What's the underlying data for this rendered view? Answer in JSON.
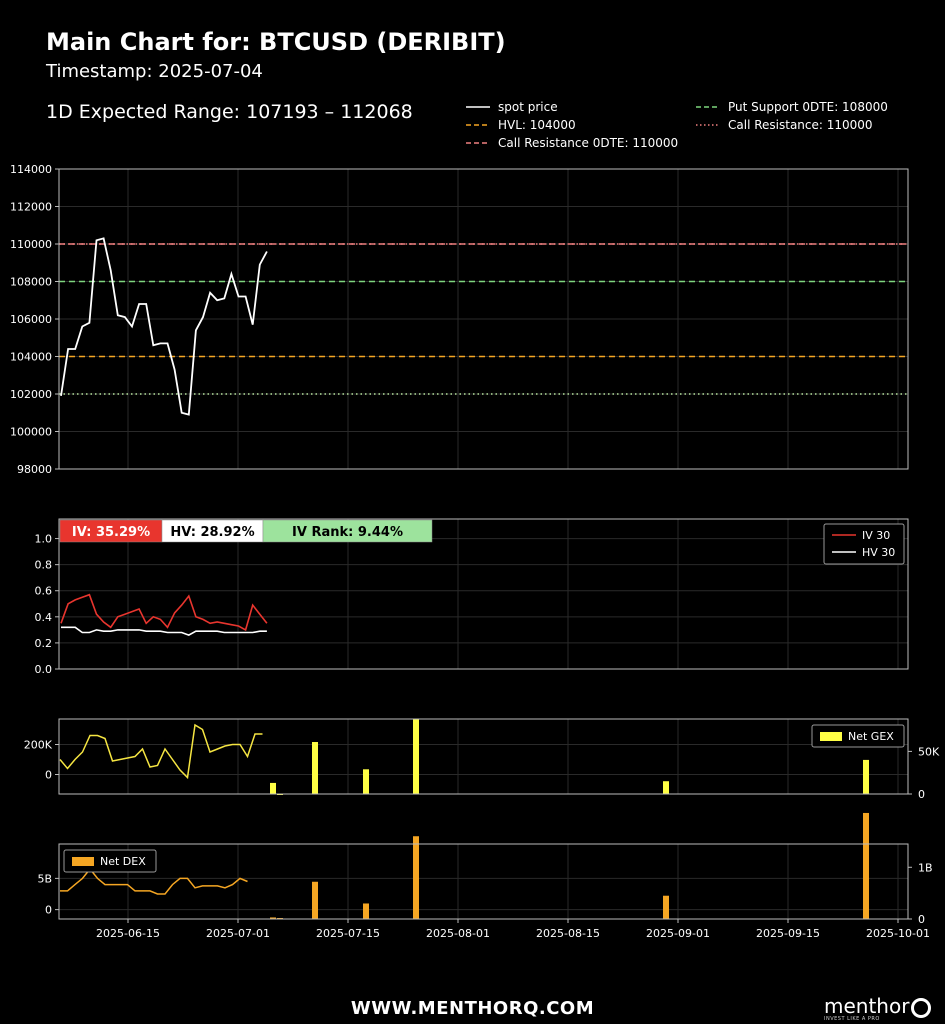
{
  "header": {
    "title": "Main Chart for: BTCUSD (DERIBIT)",
    "timestamp": "Timestamp: 2025-07-04",
    "expected_range": "1D Expected Range: 107193 – 112068"
  },
  "legend_top": [
    {
      "label": "spot price",
      "color": "#ffffff",
      "style": "solid"
    },
    {
      "label": "HVL: 104000",
      "color": "#f5a623",
      "style": "dashed"
    },
    {
      "label": "Call Resistance 0DTE: 110000",
      "color": "#f08080",
      "style": "dashed"
    },
    {
      "label": "Put Support 0DTE: 108000",
      "color": "#7ed67e",
      "style": "dashed"
    },
    {
      "label": "Call Resistance: 110000",
      "color": "#f08080",
      "style": "dotted"
    }
  ],
  "badges": {
    "iv": "IV: 35.29%",
    "hv": "HV: 28.92%",
    "iv_rank": "IV Rank: 9.44%",
    "iv_color": "#e8352e",
    "hv_color": "#ffffff",
    "rank_color": "#9de39d"
  },
  "footer": {
    "site": "WWW.MENTHORQ.COM",
    "logo": "menthor",
    "tagline": "INVEST LIKE A PRO"
  },
  "chart_data": [
    {
      "type": "line",
      "ylim": [
        98000,
        114000
      ],
      "y_ticks": [
        "98000",
        "100000",
        "102000",
        "104000",
        "106000",
        "108000",
        "110000",
        "112000",
        "114000"
      ],
      "grid": true,
      "legend": "top",
      "spot_price": [
        101900,
        104400,
        104400,
        105600,
        105800,
        110200,
        110300,
        108600,
        106200,
        106100,
        105600,
        106800,
        106800,
        104600,
        104700,
        104700,
        103300,
        101000,
        100900,
        105400,
        106100,
        107400,
        107000,
        107100,
        108400,
        107200,
        107200,
        105700,
        108900,
        109600
      ],
      "levels": [
        {
          "name": "HVL",
          "value": 104000,
          "color": "#f5a623",
          "style": "dashed"
        },
        {
          "name": "Put Support 0DTE",
          "value": 108000,
          "color": "#7ed67e",
          "style": "dashed"
        },
        {
          "name": "Call Resistance 0DTE",
          "value": 110000,
          "color": "#f08080",
          "style": "dashed"
        },
        {
          "name": "Call Resistance",
          "value": 110000,
          "color": "#f08080",
          "style": "dotted"
        },
        {
          "name": "unlabeled",
          "value": 102000,
          "color": "#b8e6a0",
          "style": "dotted"
        }
      ]
    },
    {
      "type": "line",
      "ylim": [
        0,
        1.15
      ],
      "y_ticks": [
        "0.0",
        "0.2",
        "0.4",
        "0.6",
        "0.8",
        "1.0"
      ],
      "grid": true,
      "legend": "top-right",
      "series": [
        {
          "name": "IV 30",
          "color": "#e8352e",
          "values": [
            0.35,
            0.5,
            0.53,
            0.55,
            0.57,
            0.42,
            0.36,
            0.32,
            0.4,
            0.42,
            0.44,
            0.46,
            0.35,
            0.4,
            0.38,
            0.32,
            0.43,
            0.49,
            0.56,
            0.4,
            0.38,
            0.35,
            0.36,
            0.35,
            0.34,
            0.33,
            0.3,
            0.49,
            0.42,
            0.35
          ]
        },
        {
          "name": "HV 30",
          "color": "#ffffff",
          "values": [
            0.32,
            0.32,
            0.32,
            0.28,
            0.28,
            0.3,
            0.29,
            0.29,
            0.3,
            0.3,
            0.3,
            0.3,
            0.29,
            0.29,
            0.29,
            0.28,
            0.28,
            0.28,
            0.26,
            0.29,
            0.29,
            0.29,
            0.29,
            0.28,
            0.28,
            0.28,
            0.28,
            0.28,
            0.29,
            0.29
          ]
        }
      ]
    },
    {
      "type": "bar",
      "legend": "top-right",
      "y_ticks_left": [
        "0",
        "200K"
      ],
      "y_ticks_right": [
        "0",
        "50K"
      ],
      "ylim_left": [
        -130000,
        370000
      ],
      "ylim_right": [
        0,
        88000
      ],
      "line_series": {
        "name": "",
        "color": "#f5e542",
        "values": [
          100000,
          40000,
          100000,
          150000,
          260000,
          260000,
          240000,
          90000,
          100000,
          110000,
          120000,
          170000,
          50000,
          60000,
          170000,
          100000,
          30000,
          -20000,
          330000,
          300000,
          150000,
          170000,
          190000,
          200000,
          200000,
          120000,
          270000,
          270000
        ]
      },
      "bars": {
        "name": "Net GEX",
        "color": "#ffff44",
        "x": [
          "2025-07-04",
          "2025-07-05",
          "2025-07-11",
          "2025-07-18",
          "2025-07-25",
          "2025-08-29",
          "2025-09-26"
        ],
        "values": [
          13000,
          -1000,
          61000,
          29000,
          88000,
          15000,
          40000
        ]
      }
    },
    {
      "type": "bar",
      "legend": "top-left",
      "y_ticks_left": [
        "0",
        "5B"
      ],
      "y_ticks_right": [
        "0",
        "1B"
      ],
      "ylim_left": [
        -1500000000,
        10500000000
      ],
      "ylim_right": [
        0,
        1450000000
      ],
      "line_series": {
        "name": "",
        "color": "#f5a623",
        "values": [
          3000000000,
          3000000000,
          4000000000,
          5000000000,
          6500000000,
          5000000000,
          4000000000,
          4000000000,
          4000000000,
          4000000000,
          3000000000,
          3000000000,
          3000000000,
          2500000000,
          2500000000,
          4000000000,
          5000000000,
          5000000000,
          3500000000,
          3800000000,
          3800000000,
          3800000000,
          3500000000,
          4000000000,
          5000000000,
          4500000000
        ]
      },
      "bars": {
        "name": "Net DEX",
        "color": "#f5a623",
        "x": [
          "2025-07-04",
          "2025-07-05",
          "2025-07-11",
          "2025-07-18",
          "2025-07-25",
          "2025-08-29",
          "2025-09-26"
        ],
        "values": [
          30000000,
          0,
          720000000,
          300000000,
          1600000000,
          450000000,
          2050000000
        ]
      },
      "x_ticks": [
        "2025-06-15",
        "2025-07-01",
        "2025-07-15",
        "2025-08-01",
        "2025-08-15",
        "2025-09-01",
        "2025-09-15",
        "2025-10-01"
      ]
    }
  ]
}
